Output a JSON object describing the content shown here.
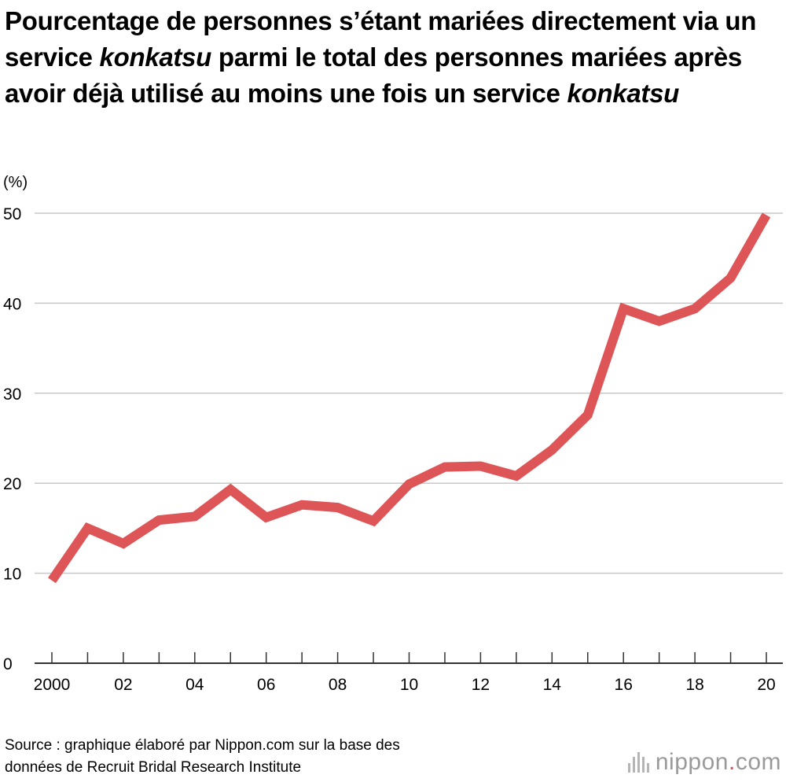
{
  "title": {
    "part1": "Pourcentage de personnes s’étant mariées directement via un service ",
    "em1": "konkatsu",
    "part2": " parmi le total des personnes mariées après avoir déjà utilisé au moins une fois un service ",
    "em2": "konkatsu"
  },
  "chart_data": {
    "type": "line",
    "title": "Pourcentage de personnes s’étant mariées directement via un service konkatsu parmi le total des personnes mariées après avoir déjà utilisé au moins une fois un service konkatsu",
    "ylabel": "(%)",
    "xlabel": "",
    "ylim": [
      0,
      50
    ],
    "yticks": [
      0,
      10,
      20,
      30,
      40,
      50
    ],
    "ytick_labels": [
      "0",
      "10",
      "20",
      "30",
      "40",
      "50"
    ],
    "x": [
      2000,
      2001,
      2002,
      2003,
      2004,
      2005,
      2006,
      2007,
      2008,
      2009,
      2010,
      2011,
      2012,
      2013,
      2014,
      2015,
      2016,
      2017,
      2018,
      2019,
      2020
    ],
    "xtick_labels": [
      {
        "year": 2000,
        "label": "2000"
      },
      {
        "year": 2002,
        "label": "02"
      },
      {
        "year": 2004,
        "label": "04"
      },
      {
        "year": 2006,
        "label": "06"
      },
      {
        "year": 2008,
        "label": "08"
      },
      {
        "year": 2010,
        "label": "10"
      },
      {
        "year": 2012,
        "label": "12"
      },
      {
        "year": 2014,
        "label": "14"
      },
      {
        "year": 2016,
        "label": "16"
      },
      {
        "year": 2018,
        "label": "18"
      },
      {
        "year": 2020,
        "label": "20"
      }
    ],
    "series": [
      {
        "name": "Pourcentage",
        "color": "#de5558",
        "values": [
          9.2,
          15.0,
          13.3,
          15.9,
          16.3,
          19.3,
          16.2,
          17.6,
          17.3,
          15.8,
          19.9,
          21.8,
          21.9,
          20.8,
          23.7,
          27.6,
          39.4,
          38.0,
          39.4,
          42.8,
          49.8
        ]
      }
    ],
    "grid": true,
    "legend": "none"
  },
  "source": {
    "line1": "Source : graphique élaboré par Nippon.com sur la base des",
    "line2": "données de Recruit Bridal Research Institute"
  },
  "brand": {
    "name": "nippon",
    "dot": ".",
    "tld": "com"
  },
  "colors": {
    "line": "#de5558",
    "grid": "#c8c8c8",
    "axis": "#333333",
    "brand_gray": "#9a9a9a",
    "brand_accent": "#d9534f"
  }
}
